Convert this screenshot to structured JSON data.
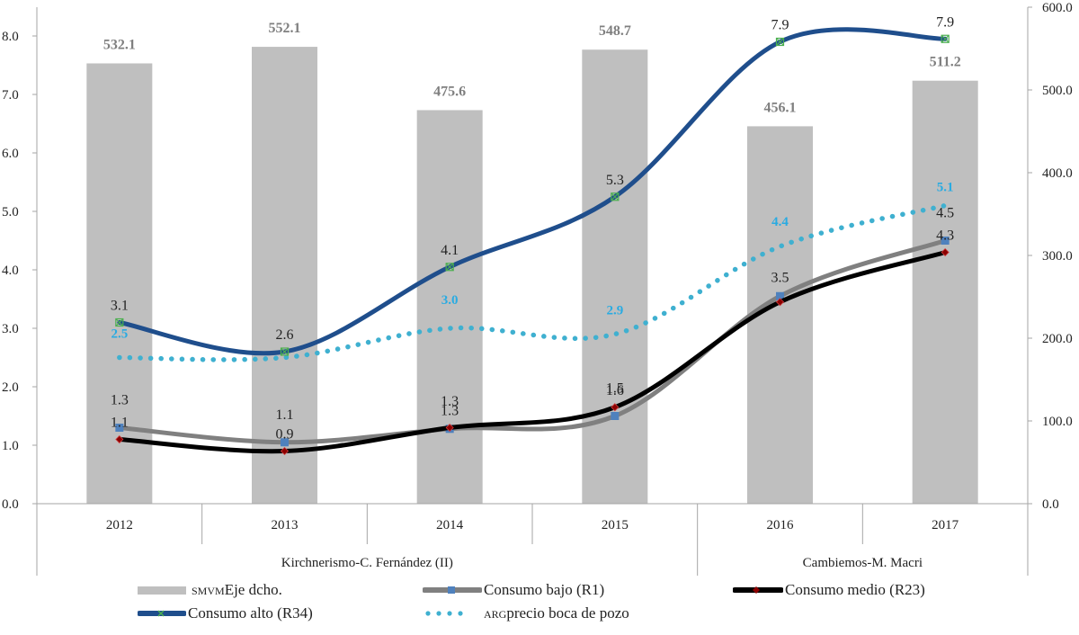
{
  "chart_data": {
    "type": "bar+line",
    "title": "",
    "categories": [
      "2012",
      "2013",
      "2014",
      "2015",
      "2016",
      "2017"
    ],
    "groups": [
      {
        "label": "Kirchnerismo-C. Fernández (II)",
        "categories": [
          "2012",
          "2013",
          "2014",
          "2015"
        ]
      },
      {
        "label": "Cambiemos-M. Macri",
        "categories": [
          "2016",
          "2017"
        ]
      }
    ],
    "left_axis": {
      "min": 0,
      "max": 8,
      "step": 1,
      "ticks": [
        "0.0",
        "1.0",
        "2.0",
        "3.0",
        "4.0",
        "5.0",
        "6.0",
        "7.0",
        "8.0"
      ]
    },
    "right_axis": {
      "min": 0,
      "max": 600,
      "step": 100,
      "ticks": [
        "0.0",
        "100.0",
        "200.0",
        "300.0",
        "400.0",
        "500.0",
        "600.0"
      ]
    },
    "grid": false,
    "legend_position": "bottom",
    "series": [
      {
        "name": "SMVM Eje dcho.",
        "kind": "bar",
        "axis": "right",
        "color": "#bfbfbf",
        "label_color": "#7f7f7f",
        "values": [
          532.1,
          552.1,
          475.6,
          548.7,
          456.1,
          511.2
        ],
        "labels": [
          "532.1",
          "552.1",
          "475.6",
          "548.7",
          "456.1",
          "511.2"
        ]
      },
      {
        "name": "Consumo bajo (R1)",
        "kind": "line",
        "axis": "left",
        "color": "#808080",
        "marker": "square",
        "marker_color": "#4f81bd",
        "values": [
          1.3,
          1.05,
          1.28,
          1.5,
          3.55,
          4.5
        ],
        "labels": [
          "1.3",
          "1.1",
          "1.3",
          "1.5",
          "3.5",
          "4.5"
        ]
      },
      {
        "name": "Consumo medio (R23)",
        "kind": "line",
        "axis": "left",
        "color": "#000000",
        "marker": "diamond",
        "marker_color": "#8b0000",
        "values": [
          1.1,
          0.9,
          1.3,
          1.65,
          3.45,
          4.3
        ],
        "labels": [
          "1.1",
          "0.9",
          "1.3",
          "1.6",
          "",
          "4.3"
        ]
      },
      {
        "name": "Consumo alto (R34)",
        "kind": "line",
        "axis": "left",
        "color": "#1f4e8c",
        "marker": "x-square",
        "marker_color": "#4caf50",
        "values": [
          3.1,
          2.6,
          4.05,
          5.25,
          7.9,
          7.95
        ],
        "labels": [
          "3.1",
          "2.6",
          "4.1",
          "5.3",
          "7.9",
          "7.9"
        ]
      },
      {
        "name": "ARG precio boca de pozo",
        "kind": "line-dotted",
        "axis": "left",
        "color": "#3fb0d0",
        "label_color": "#29abe2",
        "values": [
          2.5,
          2.5,
          3.0,
          2.9,
          4.4,
          5.1
        ],
        "labels": [
          "2.5",
          "",
          "3.0",
          "2.9",
          "4.4",
          "5.1"
        ]
      }
    ]
  },
  "legend": {
    "items": [
      {
        "prefix": "SMVM",
        "text": " Eje dcho."
      },
      {
        "prefix": "",
        "text": "Consumo bajo (R1)"
      },
      {
        "prefix": "",
        "text": "Consumo medio (R23)"
      },
      {
        "prefix": "",
        "text": "Consumo alto (R34)"
      },
      {
        "prefix": "ARG",
        "text": " precio boca de pozo"
      }
    ]
  }
}
